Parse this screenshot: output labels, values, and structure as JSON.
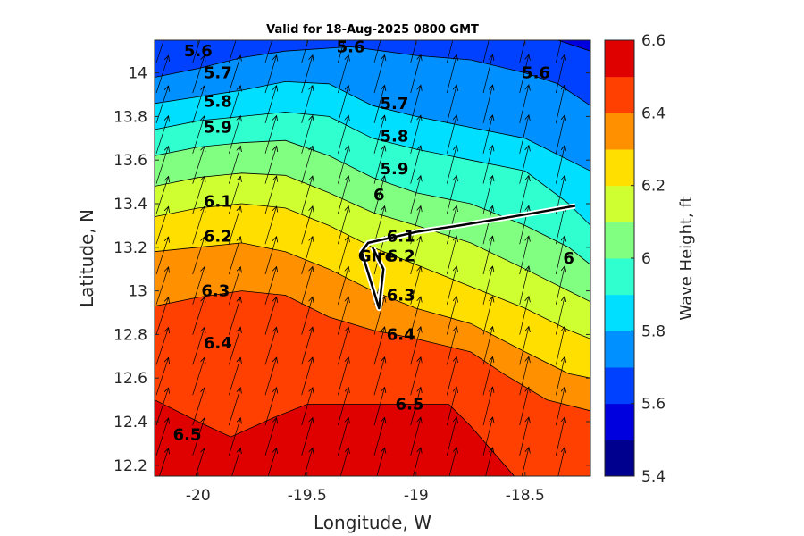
{
  "chart_data": {
    "type": "heatmap",
    "title": "Valid for 18-Aug-2025 0800 GMT",
    "xlabel": "Longitude, W",
    "ylabel": "Latitude, N",
    "xlim": [
      -20.2,
      -18.2
    ],
    "ylim": [
      12.15,
      14.15
    ],
    "xticks": [
      -20,
      -19.5,
      -19,
      -18.5
    ],
    "xtick_labels": [
      "-20",
      "-19.5",
      "-19",
      "-18.5"
    ],
    "yticks": [
      12.2,
      12.4,
      12.6,
      12.8,
      13,
      13.2,
      13.4,
      13.6,
      13.8,
      14
    ],
    "ytick_labels": [
      "12.2",
      "12.4",
      "12.6",
      "12.8",
      "13",
      "13.2",
      "13.4",
      "13.6",
      "13.8",
      "14"
    ],
    "colorbar": {
      "label": "Wave Height, ft",
      "range": [
        5.4,
        6.6
      ],
      "ticks": [
        "5.4",
        "5.6",
        "5.8",
        "6",
        "6.2",
        "6.4",
        "6.6"
      ],
      "levels": [
        5.4,
        5.5,
        5.6,
        5.7,
        5.8,
        5.9,
        6.0,
        6.1,
        6.2,
        6.3,
        6.4,
        6.5,
        6.6
      ],
      "colors": [
        "#00008f",
        "#0000df",
        "#0040ff",
        "#0090ff",
        "#00dfff",
        "#30ffcf",
        "#80ff80",
        "#cfff30",
        "#ffdf00",
        "#ff9000",
        "#ff4000",
        "#df0000",
        "#8f0000"
      ]
    },
    "contour_levels": [
      5.6,
      5.7,
      5.8,
      5.9,
      6.0,
      6.1,
      6.2,
      6.3,
      6.4,
      6.5
    ],
    "contour_lines": [
      {
        "level": 5.6,
        "points": [
          [
            -20.2,
            14.15
          ],
          [
            -19.5,
            14.15
          ],
          [
            -19.0,
            14.15
          ],
          [
            -18.5,
            14.15
          ],
          [
            -18.35,
            14.15
          ],
          [
            -18.2,
            14.1
          ]
        ]
      },
      {
        "level": 5.7,
        "points": [
          [
            -20.2,
            13.98
          ],
          [
            -20.0,
            14.02
          ],
          [
            -19.8,
            14.07
          ],
          [
            -19.6,
            14.1
          ],
          [
            -19.3,
            14.12
          ],
          [
            -19.0,
            14.08
          ],
          [
            -18.75,
            14.06
          ],
          [
            -18.5,
            14.0
          ],
          [
            -18.35,
            13.95
          ],
          [
            -18.2,
            13.85
          ]
        ]
      },
      {
        "level": 5.8,
        "points": [
          [
            -20.2,
            13.86
          ],
          [
            -20.0,
            13.89
          ],
          [
            -19.8,
            13.92
          ],
          [
            -19.6,
            13.96
          ],
          [
            -19.4,
            13.95
          ],
          [
            -19.2,
            13.85
          ],
          [
            -19.0,
            13.8
          ],
          [
            -18.75,
            13.75
          ],
          [
            -18.5,
            13.7
          ],
          [
            -18.3,
            13.6
          ],
          [
            -18.2,
            13.55
          ]
        ]
      },
      {
        "level": 5.9,
        "points": [
          [
            -20.2,
            13.74
          ],
          [
            -20.0,
            13.78
          ],
          [
            -19.8,
            13.8
          ],
          [
            -19.6,
            13.82
          ],
          [
            -19.4,
            13.8
          ],
          [
            -19.2,
            13.7
          ],
          [
            -19.0,
            13.65
          ],
          [
            -18.75,
            13.6
          ],
          [
            -18.5,
            13.55
          ],
          [
            -18.3,
            13.4
          ],
          [
            -18.2,
            13.3
          ]
        ]
      },
      {
        "level": 6.0,
        "points": [
          [
            -20.2,
            13.62
          ],
          [
            -20.0,
            13.66
          ],
          [
            -19.8,
            13.68
          ],
          [
            -19.6,
            13.69
          ],
          [
            -19.4,
            13.62
          ],
          [
            -19.2,
            13.52
          ],
          [
            -19.0,
            13.45
          ],
          [
            -18.75,
            13.4
          ],
          [
            -18.5,
            13.3
          ],
          [
            -18.3,
            13.2
          ],
          [
            -18.2,
            13.12
          ]
        ]
      },
      {
        "level": 6.1,
        "points": [
          [
            -20.2,
            13.48
          ],
          [
            -20.0,
            13.52
          ],
          [
            -19.8,
            13.54
          ],
          [
            -19.6,
            13.53
          ],
          [
            -19.4,
            13.45
          ],
          [
            -19.2,
            13.36
          ],
          [
            -19.0,
            13.3
          ],
          [
            -18.75,
            13.22
          ],
          [
            -18.5,
            13.1
          ],
          [
            -18.3,
            13.0
          ],
          [
            -18.2,
            12.95
          ]
        ]
      },
      {
        "level": 6.2,
        "points": [
          [
            -20.2,
            13.34
          ],
          [
            -20.0,
            13.38
          ],
          [
            -19.8,
            13.4
          ],
          [
            -19.6,
            13.38
          ],
          [
            -19.4,
            13.3
          ],
          [
            -19.2,
            13.2
          ],
          [
            -19.0,
            13.12
          ],
          [
            -18.75,
            13.02
          ],
          [
            -18.5,
            12.92
          ],
          [
            -18.3,
            12.82
          ],
          [
            -18.2,
            12.78
          ]
        ]
      },
      {
        "level": 6.3,
        "points": [
          [
            -20.2,
            13.18
          ],
          [
            -20.0,
            13.2
          ],
          [
            -19.8,
            13.22
          ],
          [
            -19.6,
            13.18
          ],
          [
            -19.4,
            13.1
          ],
          [
            -19.2,
            13.0
          ],
          [
            -19.0,
            12.92
          ],
          [
            -18.75,
            12.85
          ],
          [
            -18.5,
            12.72
          ],
          [
            -18.3,
            12.62
          ],
          [
            -18.2,
            12.6
          ]
        ]
      },
      {
        "level": 6.4,
        "points": [
          [
            -20.2,
            12.93
          ],
          [
            -20.0,
            12.97
          ],
          [
            -19.8,
            13.0
          ],
          [
            -19.6,
            12.98
          ],
          [
            -19.4,
            12.88
          ],
          [
            -19.2,
            12.82
          ],
          [
            -19.0,
            12.78
          ],
          [
            -18.75,
            12.72
          ],
          [
            -18.6,
            12.62
          ],
          [
            -18.4,
            12.5
          ],
          [
            -18.2,
            12.45
          ]
        ]
      },
      {
        "level": 6.5,
        "points": [
          [
            -20.2,
            12.5
          ],
          [
            -20.0,
            12.4
          ],
          [
            -19.85,
            12.33
          ],
          [
            -19.65,
            12.42
          ],
          [
            -19.5,
            12.48
          ],
          [
            -19.3,
            12.48
          ],
          [
            -19.0,
            12.48
          ],
          [
            -18.85,
            12.48
          ],
          [
            -18.75,
            12.38
          ],
          [
            -18.55,
            12.15
          ]
        ]
      }
    ],
    "contour_labels": [
      {
        "text": "5.6",
        "x": -20.0,
        "y": 14.1
      },
      {
        "text": "5.6",
        "x": -19.3,
        "y": 14.12
      },
      {
        "text": "5.6",
        "x": -18.45,
        "y": 14.0
      },
      {
        "text": "5.7",
        "x": -19.91,
        "y": 14.0
      },
      {
        "text": "5.7",
        "x": -19.1,
        "y": 13.86
      },
      {
        "text": "5.8",
        "x": -19.91,
        "y": 13.87
      },
      {
        "text": "5.8",
        "x": -19.1,
        "y": 13.71
      },
      {
        "text": "5.9",
        "x": -19.91,
        "y": 13.75
      },
      {
        "text": "5.9",
        "x": -19.1,
        "y": 13.56
      },
      {
        "text": "6",
        "x": -19.17,
        "y": 13.44
      },
      {
        "text": "6",
        "x": -18.3,
        "y": 13.15
      },
      {
        "text": "6.1",
        "x": -19.91,
        "y": 13.41
      },
      {
        "text": "6.1",
        "x": -19.07,
        "y": 13.25
      },
      {
        "text": "6.2",
        "x": -19.91,
        "y": 13.25
      },
      {
        "text": "6.2",
        "x": -19.07,
        "y": 13.16
      },
      {
        "text": "6.3",
        "x": -19.92,
        "y": 13.0
      },
      {
        "text": "6.3",
        "x": -19.07,
        "y": 12.98
      },
      {
        "text": "6.4",
        "x": -19.91,
        "y": 12.76
      },
      {
        "text": "6.4",
        "x": -19.07,
        "y": 12.8
      },
      {
        "text": "6.5",
        "x": -19.03,
        "y": 12.48
      },
      {
        "text": "6.5",
        "x": -20.05,
        "y": 12.34
      }
    ],
    "wind_arrows": {
      "x_range": [
        -20.2,
        -18.2
      ],
      "y_range": [
        12.18,
        14.12
      ],
      "nx": 13,
      "ny": 15,
      "direction": "north-northeast"
    },
    "track": {
      "name": "Gire",
      "points": [
        [
          -18.27,
          13.39
        ],
        [
          -18.5,
          13.35
        ],
        [
          -18.8,
          13.3
        ],
        [
          -19.0,
          13.27
        ],
        [
          -19.22,
          13.22
        ],
        [
          -19.25,
          13.18
        ],
        [
          -19.17,
          12.92
        ],
        [
          -19.15,
          13.1
        ],
        [
          -19.2,
          13.2
        ]
      ]
    },
    "track_label": {
      "text": "Gire",
      "x": -19.18,
      "y": 13.16
    }
  }
}
